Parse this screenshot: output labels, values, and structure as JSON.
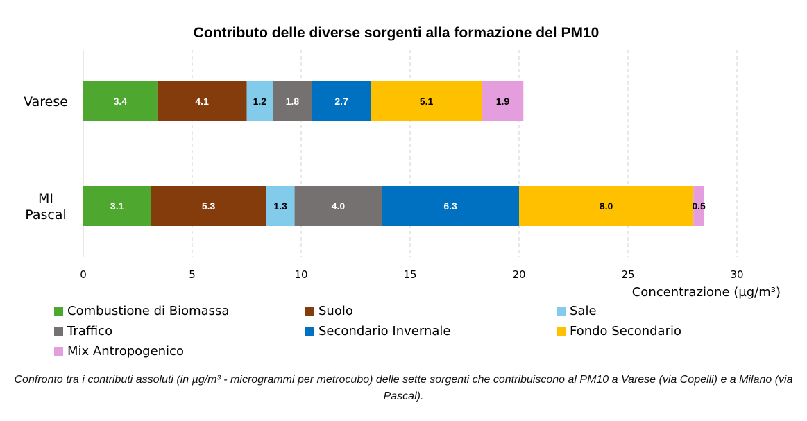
{
  "chart_data": {
    "type": "bar",
    "orientation": "horizontal",
    "stacked": true,
    "title": "Contributo delle diverse sorgenti alla formazione del PM10",
    "xlabel": "Concentrazione  (µg/m³)",
    "ylabel": "",
    "xlim": [
      0,
      30
    ],
    "xticks": [
      "0",
      "5",
      "10",
      "15",
      "20",
      "25",
      "30"
    ],
    "grid": "vertical dashed",
    "legend_position": "bottom",
    "categories": [
      {
        "lines": [
          "Varese"
        ]
      },
      {
        "lines": [
          "MI",
          "Pascal"
        ]
      }
    ],
    "series": [
      {
        "name": "Combustione di Biomassa",
        "color": "#4ea72e",
        "values": [
          3.4,
          3.1
        ],
        "labels": [
          "3.4",
          "3.1"
        ],
        "label_color": "#ffffff"
      },
      {
        "name": "Suolo",
        "color": "#843c0c",
        "values": [
          4.1,
          5.3
        ],
        "labels": [
          "4.1",
          "5.3"
        ],
        "label_color": "#ffffff"
      },
      {
        "name": "Sale",
        "color": "#83cbeb",
        "values": [
          1.2,
          1.3
        ],
        "labels": [
          "1.2",
          "1.3"
        ],
        "label_color": "#000000"
      },
      {
        "name": "Traffico",
        "color": "#767171",
        "values": [
          1.8,
          4.0
        ],
        "labels": [
          "1.8",
          "4.0"
        ],
        "label_color": "#ffffff"
      },
      {
        "name": "Secondario Invernale",
        "color": "#0070c0",
        "values": [
          2.7,
          6.3
        ],
        "labels": [
          "2.7",
          "6.3"
        ],
        "label_color": "#ffffff"
      },
      {
        "name": "Fondo Secondario",
        "color": "#ffc000",
        "values": [
          5.1,
          8.0
        ],
        "labels": [
          "5.1",
          "8.0"
        ],
        "label_color": "#000000"
      },
      {
        "name": "Mix Antropogenico",
        "color": "#e59edd",
        "values": [
          1.9,
          0.5
        ],
        "labels": [
          "1.9",
          "0.5"
        ],
        "label_color": "#000000"
      }
    ]
  },
  "caption": "Confronto tra i contributi assoluti (in µg/m³ - microgrammi per metrocubo) delle sette sorgenti che contribuiscono al PM10 a Varese (via Copelli) e a Milano (via Pascal)."
}
